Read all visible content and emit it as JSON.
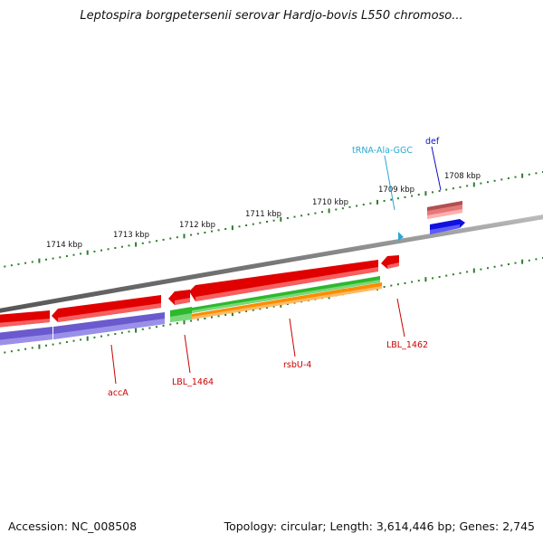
{
  "title": "Leptospira borgpetersenii serovar Hardjo-bovis L550 chromoso...",
  "footer": {
    "accession_label": "Accession:",
    "accession": "NC_008508",
    "topology_label": "Topology:",
    "topology": "circular",
    "length_label": "Length:",
    "length": "3,614,446 bp",
    "genes_label": "Genes:",
    "genes": "2,745"
  },
  "scale": {
    "unit": "kbp",
    "labeled_ticks": [
      "1714 kbp",
      "1713 kbp",
      "1712 kbp",
      "1711 kbp",
      "1710 kbp",
      "1709 kbp",
      "1708 kbp"
    ]
  },
  "colors": {
    "backbone": "#888888",
    "tick": "#2e7d2e",
    "gene_red": "#e00000",
    "gene_blue": "#1010e0",
    "gene_purple": "#6a5acd",
    "gene_green": "#2db82d",
    "gene_orange": "#ff8c00",
    "gene_salmon": "#e87878",
    "label_red": "#cc0000",
    "label_cyan": "#29a8d8",
    "label_blue": "#1010c0"
  },
  "features": [
    {
      "name": "def",
      "color": "label_blue"
    },
    {
      "name": "tRNA-Ala-GGC",
      "color": "label_cyan"
    },
    {
      "name": "LBL_1462",
      "color": "label_red"
    },
    {
      "name": "rsbU-4",
      "color": "label_red"
    },
    {
      "name": "LBL_1464",
      "color": "label_red"
    },
    {
      "name": "accA",
      "color": "label_red"
    }
  ]
}
